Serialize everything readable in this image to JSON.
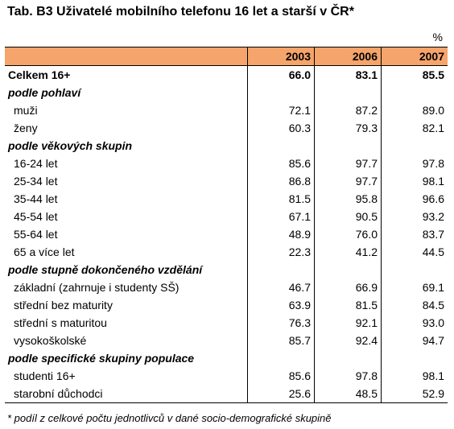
{
  "title": "Tab. B3 Uživatelé mobilního telefonu 16 let a starší v ČR*",
  "unit": "%",
  "years": [
    "2003",
    "2006",
    "2007"
  ],
  "total": {
    "label": "Celkem 16+",
    "values": [
      "66.0",
      "83.1",
      "85.5"
    ]
  },
  "sections": [
    {
      "label": "podle pohlaví",
      "rows": [
        {
          "label": "muži",
          "values": [
            "72.1",
            "87.2",
            "89.0"
          ]
        },
        {
          "label": "ženy",
          "values": [
            "60.3",
            "79.3",
            "82.1"
          ]
        }
      ]
    },
    {
      "label": "podle věkových skupin",
      "rows": [
        {
          "label": "16-24 let",
          "values": [
            "85.6",
            "97.7",
            "97.8"
          ]
        },
        {
          "label": "25-34 let",
          "values": [
            "86.8",
            "97.7",
            "98.1"
          ]
        },
        {
          "label": "35-44 let",
          "values": [
            "81.5",
            "95.8",
            "96.6"
          ]
        },
        {
          "label": "45-54 let",
          "values": [
            "67.1",
            "90.5",
            "93.2"
          ]
        },
        {
          "label": "55-64 let",
          "values": [
            "48.9",
            "76.0",
            "83.7"
          ]
        },
        {
          "label": "65 a více let",
          "values": [
            "22.3",
            "41.2",
            "44.5"
          ]
        }
      ]
    },
    {
      "label": "podle stupně dokončeného vzdělání",
      "rows": [
        {
          "label": "základní (zahrnuje i studenty SŠ)",
          "values": [
            "46.7",
            "66.9",
            "69.1"
          ]
        },
        {
          "label": "střední bez maturity",
          "values": [
            "63.9",
            "81.5",
            "84.5"
          ]
        },
        {
          "label": "střední s maturitou",
          "values": [
            "76.3",
            "92.1",
            "93.0"
          ]
        },
        {
          "label": "vysokoškolské",
          "values": [
            "85.7",
            "92.4",
            "94.7"
          ]
        }
      ]
    },
    {
      "label": "podle specifické skupiny populace",
      "rows": [
        {
          "label": "studenti 16+",
          "values": [
            "85.6",
            "97.8",
            "98.1"
          ]
        },
        {
          "label": "starobní důchodci",
          "values": [
            "25.6",
            "48.5",
            "52.9"
          ]
        }
      ]
    }
  ],
  "note": "* podíl z celkové počtu jednotlivců v dané socio-demografické skupině"
}
